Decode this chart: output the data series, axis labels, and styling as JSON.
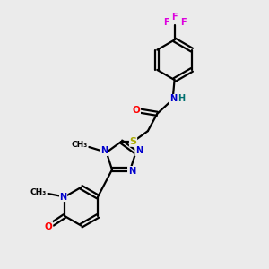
{
  "bg_color": "#ebebeb",
  "atom_colors": {
    "C": "#000000",
    "N": "#0000cc",
    "O": "#ff0000",
    "S": "#aaaa00",
    "F": "#dd00dd",
    "H": "#007070"
  },
  "lw": 1.6,
  "fontsize": 7.5
}
